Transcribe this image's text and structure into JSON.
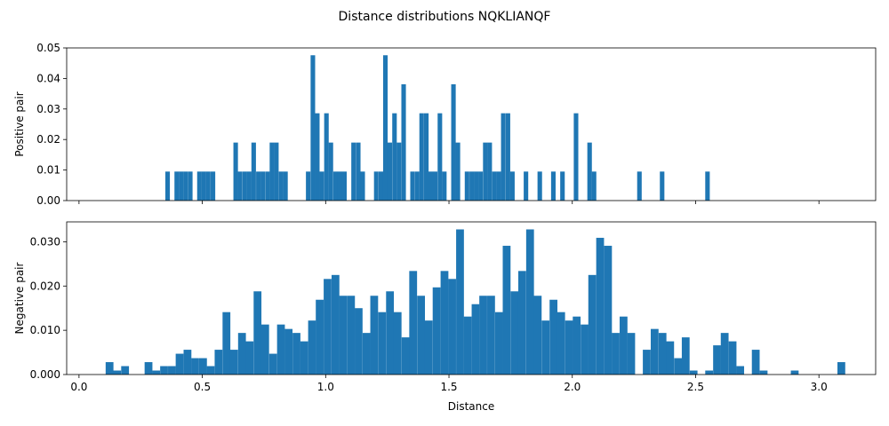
{
  "chart_data": {
    "type": "bar",
    "title": "Distance distributions NQKLIANQF",
    "xlabel": "Distance",
    "xlim": [
      -0.05,
      3.23
    ],
    "xticks": [
      0.0,
      0.5,
      1.0,
      1.5,
      2.0,
      2.5,
      3.0
    ],
    "xtick_labels": [
      "0.0",
      "0.5",
      "1.0",
      "1.5",
      "2.0",
      "2.5",
      "3.0"
    ],
    "color": "#1f77b4",
    "grid": false,
    "panels": [
      {
        "ylabel": "Positive pair",
        "ylim": [
          0,
          0.05
        ],
        "yticks": [
          0.0,
          0.01,
          0.02,
          0.03,
          0.04,
          0.05
        ],
        "ytick_labels": [
          "0.00",
          "0.01",
          "0.02",
          "0.03",
          "0.04",
          "0.05"
        ],
        "show_xtick_labels": false,
        "bin_width": 0.0184,
        "bins": [
          {
            "x": 0.35,
            "y": 0.0095
          },
          {
            "x": 0.387,
            "y": 0.0095
          },
          {
            "x": 0.405,
            "y": 0.0095
          },
          {
            "x": 0.423,
            "y": 0.0095
          },
          {
            "x": 0.442,
            "y": 0.0095
          },
          {
            "x": 0.479,
            "y": 0.0095
          },
          {
            "x": 0.497,
            "y": 0.0095
          },
          {
            "x": 0.515,
            "y": 0.0095
          },
          {
            "x": 0.534,
            "y": 0.0095
          },
          {
            "x": 0.626,
            "y": 0.019
          },
          {
            "x": 0.644,
            "y": 0.0095
          },
          {
            "x": 0.663,
            "y": 0.0095
          },
          {
            "x": 0.681,
            "y": 0.0095
          },
          {
            "x": 0.699,
            "y": 0.019
          },
          {
            "x": 0.718,
            "y": 0.0095
          },
          {
            "x": 0.736,
            "y": 0.0095
          },
          {
            "x": 0.755,
            "y": 0.0095
          },
          {
            "x": 0.773,
            "y": 0.019
          },
          {
            "x": 0.791,
            "y": 0.019
          },
          {
            "x": 0.81,
            "y": 0.0095
          },
          {
            "x": 0.828,
            "y": 0.0095
          },
          {
            "x": 0.92,
            "y": 0.0095
          },
          {
            "x": 0.939,
            "y": 0.0476
          },
          {
            "x": 0.957,
            "y": 0.0286
          },
          {
            "x": 0.975,
            "y": 0.0095
          },
          {
            "x": 0.994,
            "y": 0.0286
          },
          {
            "x": 1.012,
            "y": 0.019
          },
          {
            "x": 1.031,
            "y": 0.0095
          },
          {
            "x": 1.049,
            "y": 0.0095
          },
          {
            "x": 1.067,
            "y": 0.0095
          },
          {
            "x": 1.104,
            "y": 0.019
          },
          {
            "x": 1.123,
            "y": 0.019
          },
          {
            "x": 1.141,
            "y": 0.0095
          },
          {
            "x": 1.196,
            "y": 0.0095
          },
          {
            "x": 1.215,
            "y": 0.0095
          },
          {
            "x": 1.233,
            "y": 0.0476
          },
          {
            "x": 1.251,
            "y": 0.019
          },
          {
            "x": 1.27,
            "y": 0.0286
          },
          {
            "x": 1.288,
            "y": 0.019
          },
          {
            "x": 1.307,
            "y": 0.0381
          },
          {
            "x": 1.343,
            "y": 0.0095
          },
          {
            "x": 1.362,
            "y": 0.0095
          },
          {
            "x": 1.38,
            "y": 0.0286
          },
          {
            "x": 1.399,
            "y": 0.0286
          },
          {
            "x": 1.417,
            "y": 0.0095
          },
          {
            "x": 1.435,
            "y": 0.0095
          },
          {
            "x": 1.454,
            "y": 0.0286
          },
          {
            "x": 1.472,
            "y": 0.0095
          },
          {
            "x": 1.509,
            "y": 0.0381
          },
          {
            "x": 1.527,
            "y": 0.019
          },
          {
            "x": 1.564,
            "y": 0.0095
          },
          {
            "x": 1.583,
            "y": 0.0095
          },
          {
            "x": 1.601,
            "y": 0.0095
          },
          {
            "x": 1.619,
            "y": 0.0095
          },
          {
            "x": 1.638,
            "y": 0.019
          },
          {
            "x": 1.656,
            "y": 0.019
          },
          {
            "x": 1.675,
            "y": 0.0095
          },
          {
            "x": 1.693,
            "y": 0.0095
          },
          {
            "x": 1.711,
            "y": 0.0286
          },
          {
            "x": 1.73,
            "y": 0.0286
          },
          {
            "x": 1.748,
            "y": 0.0095
          },
          {
            "x": 1.803,
            "y": 0.0095
          },
          {
            "x": 1.859,
            "y": 0.0095
          },
          {
            "x": 1.914,
            "y": 0.0095
          },
          {
            "x": 1.951,
            "y": 0.0095
          },
          {
            "x": 2.006,
            "y": 0.0286
          },
          {
            "x": 2.061,
            "y": 0.019
          },
          {
            "x": 2.079,
            "y": 0.0095
          },
          {
            "x": 2.263,
            "y": 0.0095
          },
          {
            "x": 2.355,
            "y": 0.0095
          },
          {
            "x": 2.539,
            "y": 0.0095
          }
        ]
      },
      {
        "ylabel": "Negative pair",
        "ylim": [
          0,
          0.0345
        ],
        "yticks": [
          0.0,
          0.01,
          0.02,
          0.03
        ],
        "ytick_labels": [
          "0.000",
          "0.010",
          "0.020",
          "0.030"
        ],
        "show_xtick_labels": true,
        "bin_width": 0.0316,
        "bins": [
          {
            "x": 0.108,
            "y": 0.0028
          },
          {
            "x": 0.139,
            "y": 0.0009
          },
          {
            "x": 0.171,
            "y": 0.0019
          },
          {
            "x": 0.266,
            "y": 0.0028
          },
          {
            "x": 0.297,
            "y": 0.0009
          },
          {
            "x": 0.329,
            "y": 0.0019
          },
          {
            "x": 0.361,
            "y": 0.0019
          },
          {
            "x": 0.392,
            "y": 0.0047
          },
          {
            "x": 0.424,
            "y": 0.0056
          },
          {
            "x": 0.455,
            "y": 0.0037
          },
          {
            "x": 0.487,
            "y": 0.0037
          },
          {
            "x": 0.518,
            "y": 0.0019
          },
          {
            "x": 0.55,
            "y": 0.0056
          },
          {
            "x": 0.582,
            "y": 0.0141
          },
          {
            "x": 0.613,
            "y": 0.0056
          },
          {
            "x": 0.645,
            "y": 0.0094
          },
          {
            "x": 0.676,
            "y": 0.0075
          },
          {
            "x": 0.708,
            "y": 0.0188
          },
          {
            "x": 0.739,
            "y": 0.0113
          },
          {
            "x": 0.771,
            "y": 0.0047
          },
          {
            "x": 0.803,
            "y": 0.0113
          },
          {
            "x": 0.834,
            "y": 0.0103
          },
          {
            "x": 0.866,
            "y": 0.0094
          },
          {
            "x": 0.897,
            "y": 0.0075
          },
          {
            "x": 0.929,
            "y": 0.0122
          },
          {
            "x": 0.96,
            "y": 0.0169
          },
          {
            "x": 0.992,
            "y": 0.0216
          },
          {
            "x": 1.024,
            "y": 0.0225
          },
          {
            "x": 1.055,
            "y": 0.0178
          },
          {
            "x": 1.087,
            "y": 0.0178
          },
          {
            "x": 1.118,
            "y": 0.015
          },
          {
            "x": 1.15,
            "y": 0.0094
          },
          {
            "x": 1.181,
            "y": 0.0178
          },
          {
            "x": 1.213,
            "y": 0.0141
          },
          {
            "x": 1.245,
            "y": 0.0188
          },
          {
            "x": 1.276,
            "y": 0.0141
          },
          {
            "x": 1.308,
            "y": 0.0084
          },
          {
            "x": 1.339,
            "y": 0.0234
          },
          {
            "x": 1.371,
            "y": 0.0178
          },
          {
            "x": 1.402,
            "y": 0.0122
          },
          {
            "x": 1.434,
            "y": 0.0197
          },
          {
            "x": 1.466,
            "y": 0.0234
          },
          {
            "x": 1.497,
            "y": 0.0216
          },
          {
            "x": 1.529,
            "y": 0.0328
          },
          {
            "x": 1.56,
            "y": 0.0131
          },
          {
            "x": 1.592,
            "y": 0.0159
          },
          {
            "x": 1.623,
            "y": 0.0178
          },
          {
            "x": 1.655,
            "y": 0.0178
          },
          {
            "x": 1.687,
            "y": 0.0141
          },
          {
            "x": 1.718,
            "y": 0.0291
          },
          {
            "x": 1.75,
            "y": 0.0188
          },
          {
            "x": 1.781,
            "y": 0.0234
          },
          {
            "x": 1.813,
            "y": 0.0328
          },
          {
            "x": 1.844,
            "y": 0.0178
          },
          {
            "x": 1.876,
            "y": 0.0122
          },
          {
            "x": 1.908,
            "y": 0.0169
          },
          {
            "x": 1.939,
            "y": 0.0141
          },
          {
            "x": 1.971,
            "y": 0.0122
          },
          {
            "x": 2.002,
            "y": 0.0131
          },
          {
            "x": 2.034,
            "y": 0.0113
          },
          {
            "x": 2.065,
            "y": 0.0225
          },
          {
            "x": 2.097,
            "y": 0.0309
          },
          {
            "x": 2.129,
            "y": 0.0291
          },
          {
            "x": 2.16,
            "y": 0.0094
          },
          {
            "x": 2.192,
            "y": 0.0131
          },
          {
            "x": 2.223,
            "y": 0.0094
          },
          {
            "x": 2.286,
            "y": 0.0056
          },
          {
            "x": 2.318,
            "y": 0.0103
          },
          {
            "x": 2.35,
            "y": 0.0094
          },
          {
            "x": 2.381,
            "y": 0.0075
          },
          {
            "x": 2.413,
            "y": 0.0037
          },
          {
            "x": 2.444,
            "y": 0.0084
          },
          {
            "x": 2.476,
            "y": 0.0009
          },
          {
            "x": 2.539,
            "y": 0.0009
          },
          {
            "x": 2.571,
            "y": 0.0066
          },
          {
            "x": 2.602,
            "y": 0.0094
          },
          {
            "x": 2.634,
            "y": 0.0075
          },
          {
            "x": 2.665,
            "y": 0.0019
          },
          {
            "x": 2.728,
            "y": 0.0056
          },
          {
            "x": 2.76,
            "y": 0.0009
          },
          {
            "x": 2.886,
            "y": 0.0009
          },
          {
            "x": 3.075,
            "y": 0.0028
          }
        ]
      }
    ]
  }
}
